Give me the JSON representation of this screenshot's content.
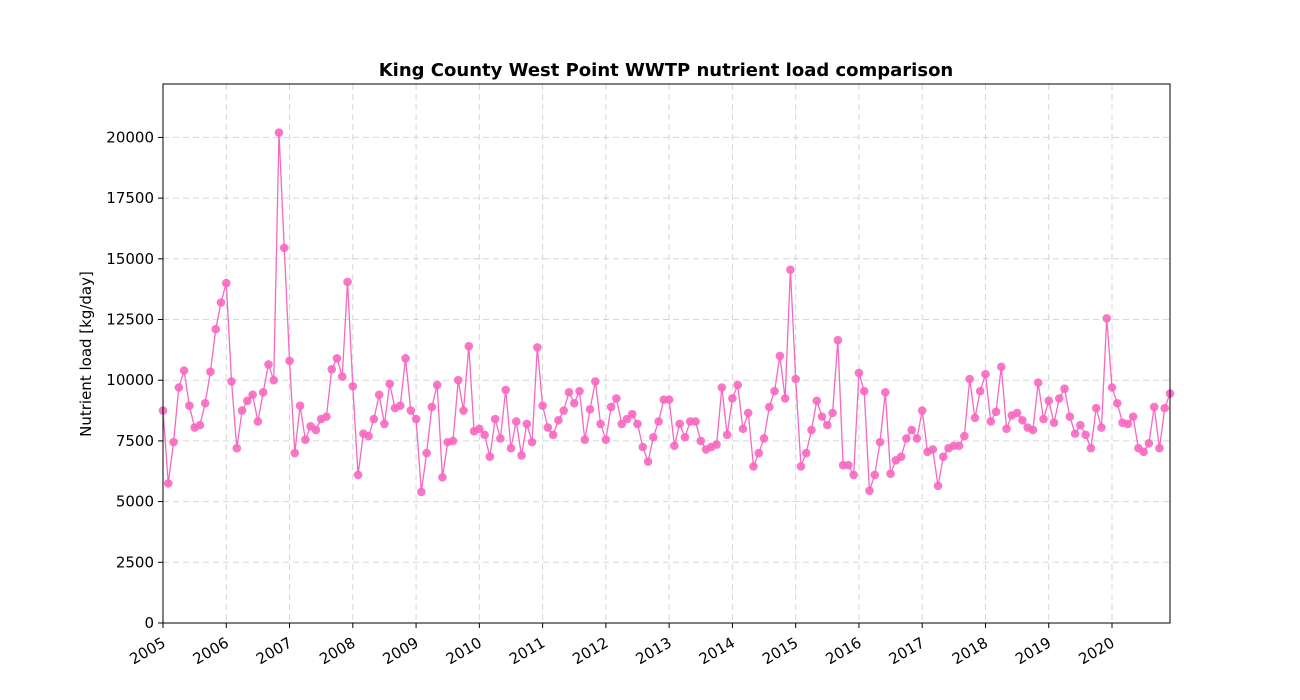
{
  "chart_data": {
    "type": "line",
    "title": "King County West Point WWTP nutrient load comparison",
    "xlabel": "",
    "ylabel": "Nutrient load [kg/day]",
    "xlim": [
      "2005-01",
      "2020-12"
    ],
    "ylim": [
      0,
      22200
    ],
    "yticks": [
      0,
      2500,
      5000,
      7500,
      10000,
      12500,
      15000,
      17500,
      20000
    ],
    "xticks": [
      "2005",
      "2006",
      "2007",
      "2008",
      "2009",
      "2010",
      "2011",
      "2012",
      "2013",
      "2014",
      "2015",
      "2016",
      "2017",
      "2018",
      "2019",
      "2020"
    ],
    "grid": true,
    "markers": true,
    "colors": {
      "series": "#f768c0"
    },
    "series": [
      {
        "start": "2005-01",
        "frequency": "monthly",
        "values": [
          8750,
          5750,
          7450,
          9700,
          10400,
          8950,
          8050,
          8150,
          9050,
          10350,
          12100,
          13200,
          14000,
          9950,
          7200,
          8750,
          9150,
          9400,
          8300,
          9500,
          10650,
          10000,
          20200,
          15450,
          10800,
          7000,
          8950,
          7550,
          8100,
          7950,
          8400,
          8500,
          10450,
          10900,
          10150,
          14050,
          9750,
          6100,
          7800,
          7700,
          8400,
          9400,
          8200,
          9850,
          8850,
          8950,
          10900,
          8750,
          8400,
          5400,
          7000,
          8900,
          9800,
          6000,
          7450,
          7500,
          10000,
          8750,
          11400,
          7900,
          8000,
          7750,
          6850,
          8400,
          7600,
          9600,
          7200,
          8300,
          6900,
          8200,
          7450,
          11350,
          8950,
          8050,
          7750,
          8350,
          8750,
          9500,
          9050,
          9550,
          7550,
          8800,
          9950,
          8200,
          7550,
          8900,
          9250,
          8200,
          8400,
          8600,
          8200,
          7250,
          6650,
          7650,
          8300,
          9200,
          9200,
          7300,
          8200,
          7650,
          8300,
          8300,
          7500,
          7150,
          7250,
          7350,
          9700,
          7750,
          9250,
          9800,
          8000,
          8650,
          6450,
          7000,
          7600,
          8900,
          9550,
          11000,
          9250,
          14550,
          10050,
          6450,
          7000,
          7950,
          9150,
          8500,
          8150,
          8650,
          11650,
          6500,
          6500,
          6100,
          10300,
          9550,
          5450,
          6100,
          7450,
          9500,
          6150,
          6700,
          6850,
          7600,
          7950,
          7600,
          8750,
          7050,
          7150,
          5650,
          6850,
          7200,
          7300,
          7300,
          7700,
          10050,
          8450,
          9550,
          10250,
          8300,
          8700,
          10550,
          8000,
          8550,
          8650,
          8350,
          8050,
          7950,
          9900,
          8400,
          9150,
          8250,
          9250,
          9650,
          8500,
          7800,
          8150,
          7750,
          7200,
          8850,
          8050,
          12550,
          9700,
          9050,
          8250,
          8200,
          8500,
          7200,
          7050,
          7400,
          8900,
          7200,
          8850,
          9450
        ]
      }
    ]
  }
}
